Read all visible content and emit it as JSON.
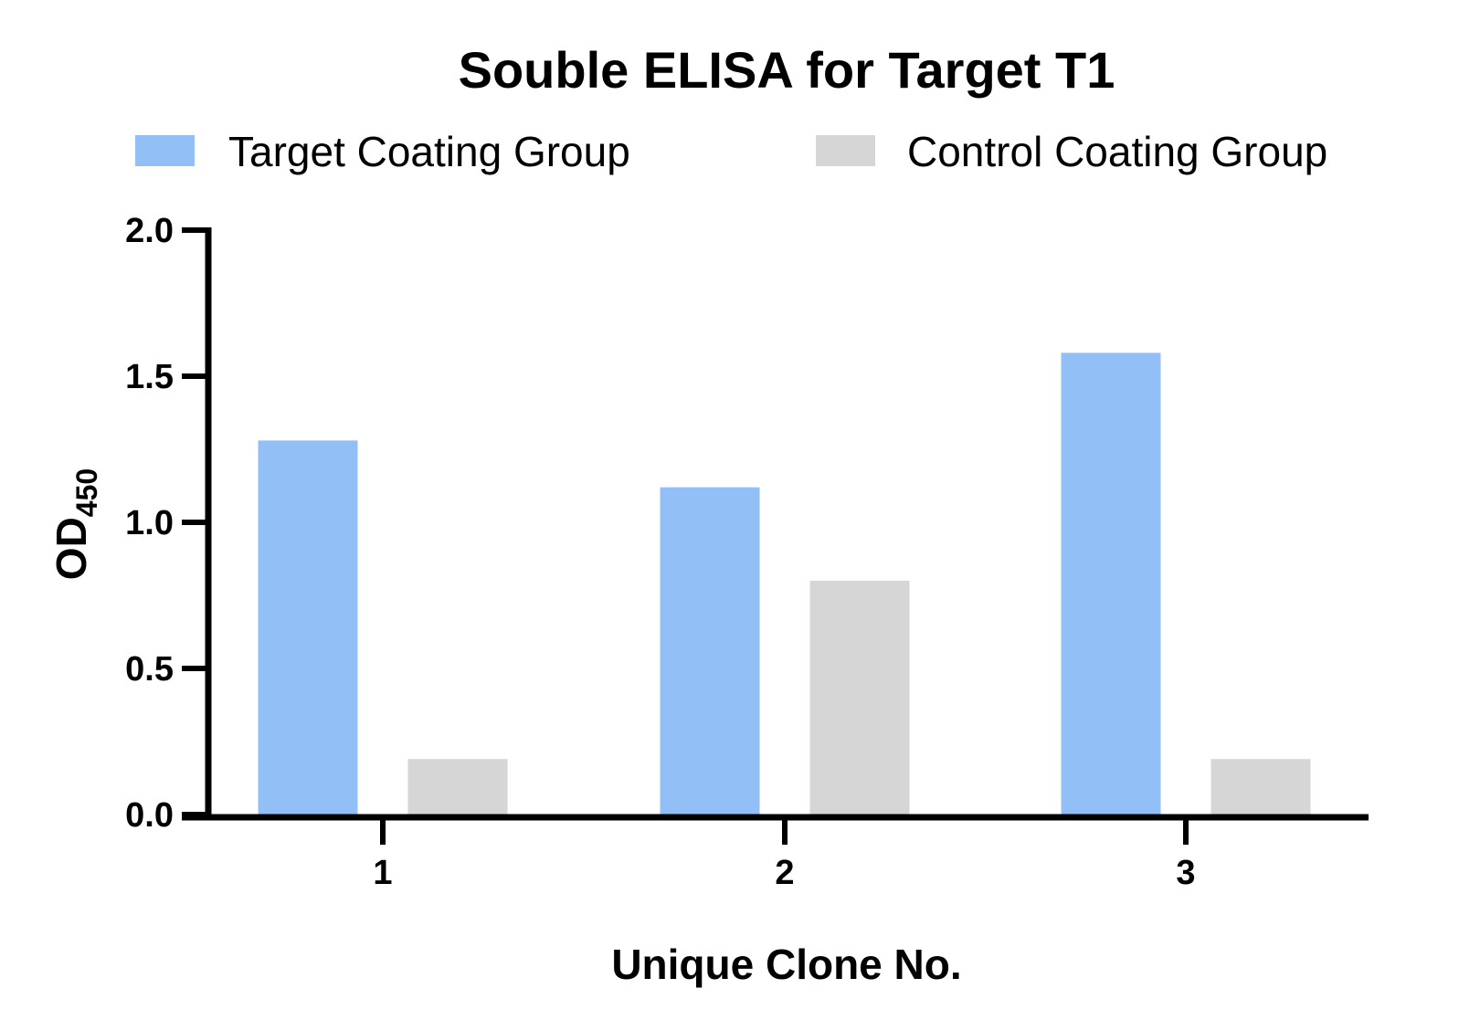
{
  "chart_data": {
    "type": "bar",
    "title": "Souble ELISA for Target T1",
    "xlabel": "Unique Clone No.",
    "ylabel": "OD",
    "ylabel_subscript": "450",
    "categories": [
      "1",
      "2",
      "3"
    ],
    "series": [
      {
        "name": "Target Coating Group",
        "color": "#93bff7",
        "values": [
          1.28,
          1.12,
          1.58
        ]
      },
      {
        "name": "Control Coating Group",
        "color": "#d6d6d6",
        "values": [
          0.19,
          0.8,
          0.19
        ]
      }
    ],
    "ylim": [
      0,
      2.0
    ],
    "yticks": [
      "0.0",
      "0.5",
      "1.0",
      "1.5",
      "2.0"
    ],
    "grid": false,
    "legend_position": "top"
  }
}
